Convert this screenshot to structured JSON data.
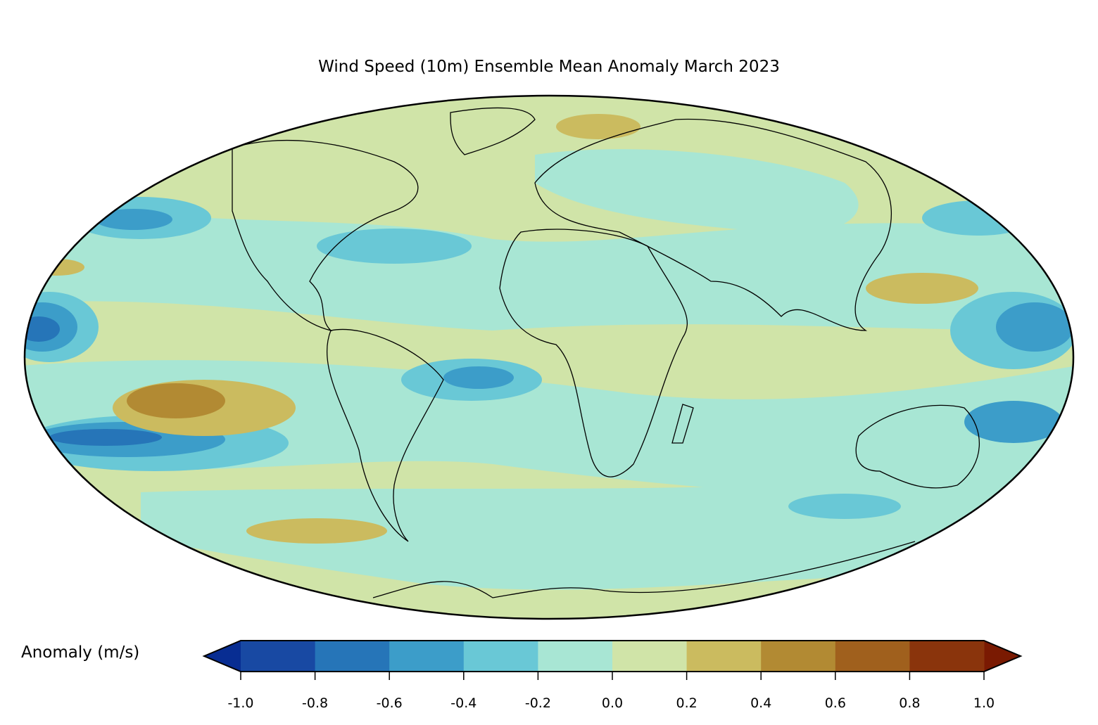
{
  "title": "Wind Speed (10m) Ensemble Mean Anomaly March 2023",
  "colorbar": {
    "label": "Anomaly (m/s)",
    "ticks": [
      "-1.0",
      "-0.8",
      "-0.6",
      "-0.4",
      "-0.2",
      "0.0",
      "0.2",
      "0.4",
      "0.6",
      "0.8",
      "1.0"
    ],
    "colors": [
      "#1849a3",
      "#2675b8",
      "#3c9dc9",
      "#69c8d6",
      "#a8e6d4",
      "#d0e4a8",
      "#cbbb5f",
      "#b28a33",
      "#a0601d",
      "#8a340c"
    ],
    "under_color": "#082d92",
    "over_color": "#7a1a02"
  }
}
